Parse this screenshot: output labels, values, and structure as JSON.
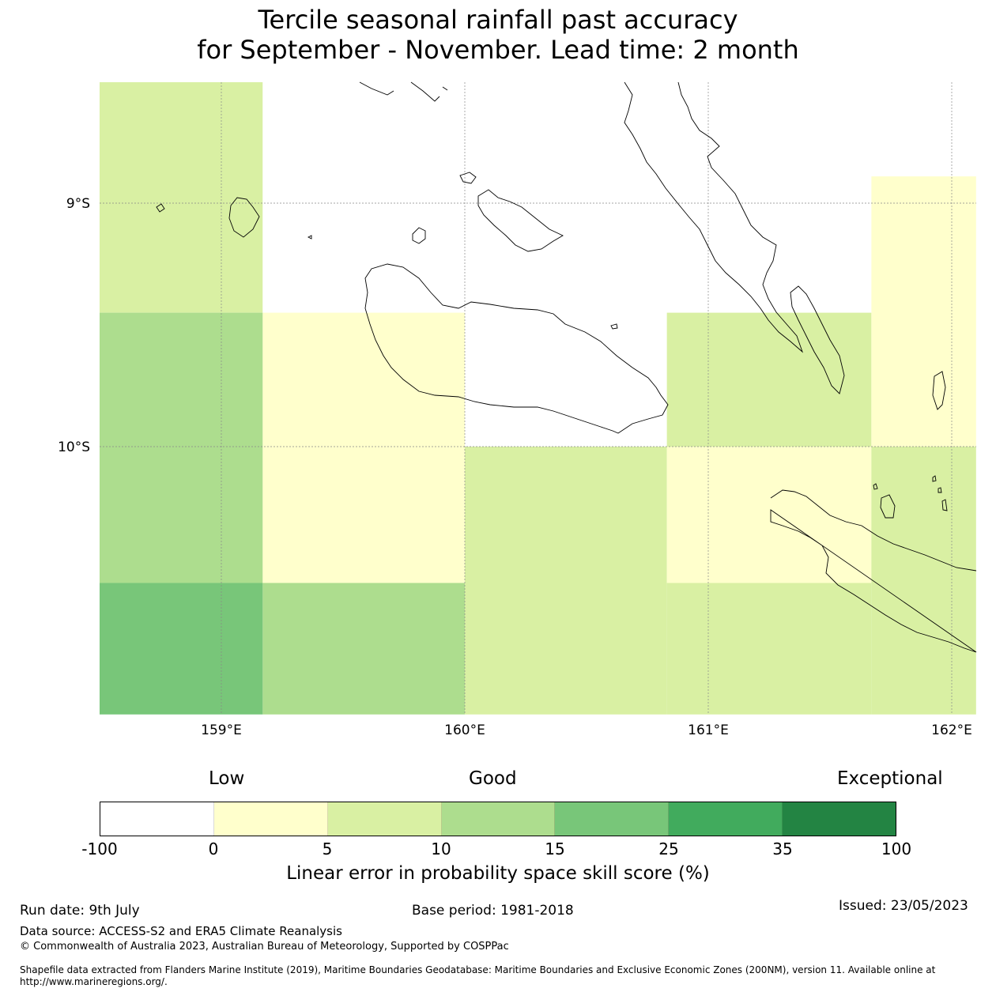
{
  "title": {
    "line1": "Tercile seasonal rainfall past accuracy",
    "line2": "for September - November. Lead time: 2 month"
  },
  "map": {
    "lon_range": [
      158.5,
      162.1
    ],
    "lat_range": [
      -11.1,
      -8.5
    ],
    "lat_labels": [
      "9°S",
      "10°S"
    ],
    "lon_labels": [
      "159°E",
      "160°E",
      "161°E",
      "162°E"
    ],
    "cells": [
      {
        "lon": [
          158.5,
          159.17
        ],
        "lat": [
          -9.45,
          -8.5
        ],
        "score_class": "5-10"
      },
      {
        "lon": [
          158.5,
          159.17
        ],
        "lat": [
          -10.56,
          -9.45
        ],
        "score_class": "10-15"
      },
      {
        "lon": [
          158.5,
          159.17
        ],
        "lat": [
          -11.1,
          -10.56
        ],
        "score_class": "15-25"
      },
      {
        "lon": [
          159.17,
          160.0
        ],
        "lat": [
          -9.45,
          -8.5
        ],
        "score_class": "-100-0"
      },
      {
        "lon": [
          159.17,
          160.0
        ],
        "lat": [
          -10.56,
          -9.45
        ],
        "score_class": "0-5"
      },
      {
        "lon": [
          159.17,
          160.0
        ],
        "lat": [
          -11.1,
          -10.56
        ],
        "score_class": "10-15"
      },
      {
        "lon": [
          160.0,
          160.83
        ],
        "lat": [
          -10.0,
          -8.5
        ],
        "score_class": "-100-0"
      },
      {
        "lon": [
          160.0,
          160.83
        ],
        "lat": [
          -11.1,
          -10.0
        ],
        "score_class": "5-10"
      },
      {
        "lon": [
          160.83,
          161.67
        ],
        "lat": [
          -9.45,
          -8.5
        ],
        "score_class": "-100-0"
      },
      {
        "lon": [
          160.83,
          161.67
        ],
        "lat": [
          -10.0,
          -9.45
        ],
        "score_class": "5-10"
      },
      {
        "lon": [
          160.83,
          161.67
        ],
        "lat": [
          -10.56,
          -10.0
        ],
        "score_class": "0-5"
      },
      {
        "lon": [
          160.83,
          161.67
        ],
        "lat": [
          -11.1,
          -10.56
        ],
        "score_class": "5-10"
      },
      {
        "lon": [
          161.67,
          162.1
        ],
        "lat": [
          -8.89,
          -8.5
        ],
        "score_class": "-100-0"
      },
      {
        "lon": [
          161.67,
          162.1
        ],
        "lat": [
          -10.0,
          -8.89
        ],
        "score_class": "0-5"
      },
      {
        "lon": [
          161.67,
          162.1
        ],
        "lat": [
          -11.1,
          -10.0
        ],
        "score_class": "5-10"
      }
    ]
  },
  "colorbar": {
    "categories": {
      "low": "Low",
      "good": "Good",
      "exceptional": "Exceptional"
    },
    "ticks": [
      "-100",
      "0",
      "5",
      "10",
      "15",
      "25",
      "35",
      "100"
    ],
    "colors": [
      "#ffffff",
      "#ffffcc",
      "#d9f0a3",
      "#addd8e",
      "#78c679",
      "#41ab5d",
      "#238443"
    ],
    "label": "Linear error in probability space skill score (%)"
  },
  "footer": {
    "run_date": "Run date: 9th July",
    "base_period": "Base period: 1981-2018",
    "issued": "Issued: 23/05/2023",
    "data_source": "Data source: ACCESS-S2 and ERA5 Climate Reanalysis",
    "copyright": "© Commonwealth of Australia 2023, Australian Bureau of Meteorology, Supported by COSPPac",
    "shapefile": "Shapefile data extracted from Flanders Marine Institute (2019), Maritime Boundaries Geodatabase: Maritime Boundaries and Exclusive Economic Zones (200NM), version 11. Available online at http://www.marineregions.org/."
  }
}
